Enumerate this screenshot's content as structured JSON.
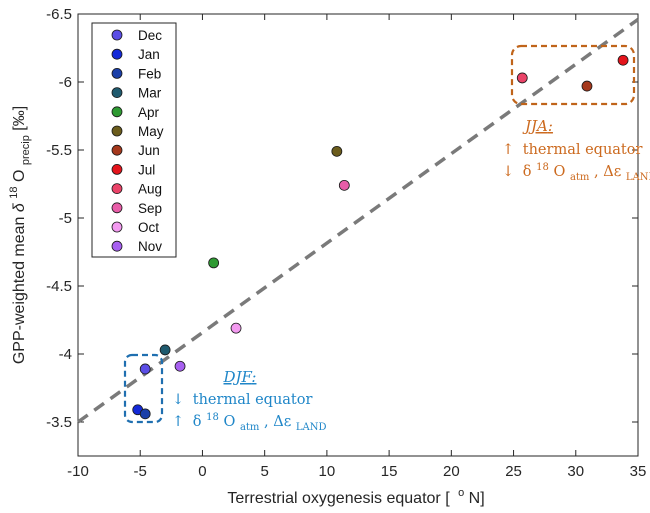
{
  "chart_data": {
    "type": "scatter",
    "title": "",
    "xlabel_main": "Terrestrial oxygenesis equator [",
    "xlabel_sup": "o",
    "xlabel_unit": "N]",
    "ylabel_main": "GPP-weighted mean ",
    "ylabel_delta": "δ",
    "ylabel_sup": "18",
    "ylabel_O": "O",
    "ylabel_sub": "precip",
    "ylabel_unit": " [‰]",
    "xlim": [
      -10,
      35
    ],
    "ylim": [
      -3.25,
      -6.5
    ],
    "y_reversed": true,
    "xticks": [
      -10,
      -5,
      0,
      5,
      10,
      15,
      20,
      25,
      30,
      35
    ],
    "yticks": [
      -3.5,
      -4,
      -4.5,
      -5,
      -5.5,
      -6,
      -6.5
    ],
    "xtick_labels": [
      "-10",
      "-5",
      "0",
      "5",
      "10",
      "15",
      "20",
      "25",
      "30",
      "35"
    ],
    "ytick_labels": [
      "-3.5",
      "-4",
      "-4.5",
      "-5",
      "-5.5",
      "-6",
      "-6.5"
    ],
    "series": [
      {
        "name": "Dec",
        "color": "#5b4ee6",
        "x": -4.6,
        "y": -3.89
      },
      {
        "name": "Jan",
        "color": "#1329d8",
        "x": -5.2,
        "y": -3.59
      },
      {
        "name": "Feb",
        "color": "#1b3fa8",
        "x": -4.6,
        "y": -3.56
      },
      {
        "name": "Mar",
        "color": "#1f5a6e",
        "x": -3.0,
        "y": -4.03
      },
      {
        "name": "Apr",
        "color": "#2e9a32",
        "x": 0.9,
        "y": -4.67
      },
      {
        "name": "May",
        "color": "#6b5c1c",
        "x": 10.8,
        "y": -5.49
      },
      {
        "name": "Jun",
        "color": "#a5381c",
        "x": 30.9,
        "y": -5.97
      },
      {
        "name": "Jul",
        "color": "#e4141c",
        "x": 33.8,
        "y": -6.16
      },
      {
        "name": "Aug",
        "color": "#ea4368",
        "x": 25.7,
        "y": -6.03
      },
      {
        "name": "Sep",
        "color": "#e85da8",
        "x": 11.4,
        "y": -5.24
      },
      {
        "name": "Oct",
        "color": "#f39af0",
        "x": 2.7,
        "y": -4.19
      },
      {
        "name": "Nov",
        "color": "#a760f0",
        "x": -1.8,
        "y": -3.91
      }
    ],
    "fit_line": {
      "x": [
        -10,
        35
      ],
      "y": [
        -3.5,
        -6.46
      ],
      "color": "#7a7a7a",
      "style": "dashed"
    },
    "annotations": {
      "jja": {
        "title": "JJA",
        "line1_arrow": "↑",
        "line1_text": "thermal equator",
        "line2_arrow": "↓",
        "delta": "δ",
        "sup18": "18",
        "O": "O",
        "sub_atm": "atm",
        "comma": ", ",
        "Delta_eps": "Δε",
        "sub_land": "LAND",
        "color": "#cc6a1f",
        "box_color": "#c0641a"
      },
      "djf": {
        "title": "DJF",
        "line1_arrow": "↓",
        "line1_text": "thermal equator",
        "line2_arrow": "↑",
        "delta": "δ",
        "sup18": "18",
        "O": "O",
        "sub_atm": "atm",
        "comma": ", ",
        "Delta_eps": "Δε",
        "sub_land": "LAND",
        "color": "#1f86c8",
        "box_color": "#1f6fb0"
      }
    }
  }
}
